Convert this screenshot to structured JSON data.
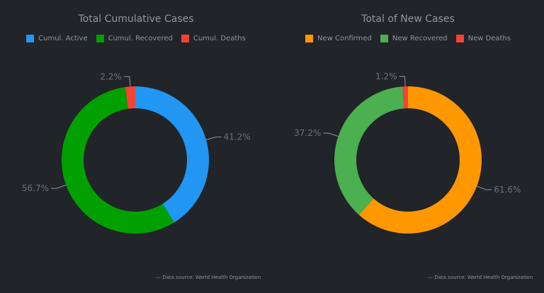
{
  "chart_data": [
    {
      "type": "pie",
      "donut": true,
      "title": "Total Cumulative Cases",
      "legend_position": "top",
      "categories": [
        "Cumul. Active",
        "Cumul. Recovered",
        "Cumul. Deaths"
      ],
      "values": [
        41.2,
        56.7,
        2.2
      ],
      "labels": [
        "41.2%",
        "56.7%",
        "2.2%"
      ],
      "colors": [
        "#2196f3",
        "#00a000",
        "#f44336"
      ],
      "source": "Data source: World Health Organization"
    },
    {
      "type": "pie",
      "donut": true,
      "title": "Total of New Cases",
      "legend_position": "top",
      "categories": [
        "New Confirmed",
        "New Recovered",
        "New Deaths"
      ],
      "values": [
        61.6,
        37.2,
        1.2
      ],
      "labels": [
        "61.6%",
        "37.2%",
        "1.2%"
      ],
      "colors": [
        "#ff9800",
        "#4caf50",
        "#f44336"
      ],
      "source": "Data source: World Health Organization"
    }
  ]
}
